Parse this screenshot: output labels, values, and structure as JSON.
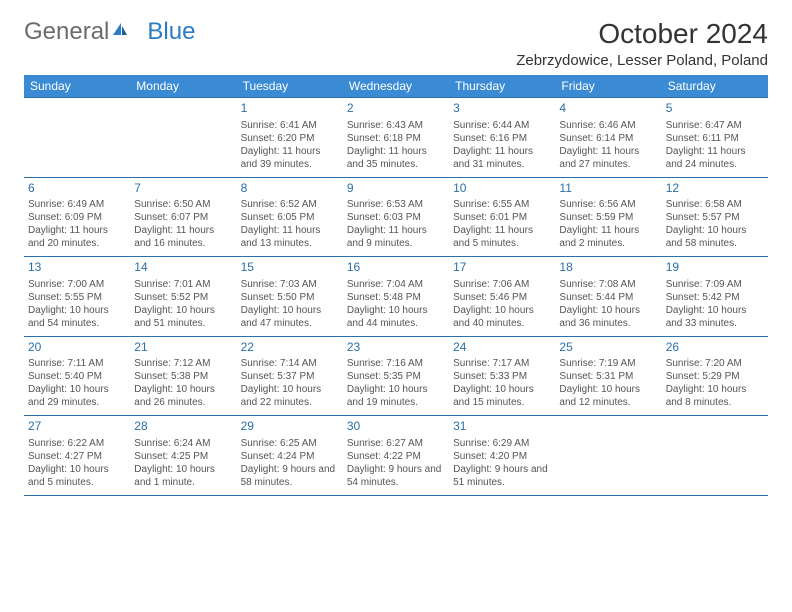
{
  "logo": {
    "general": "General",
    "blue": "Blue"
  },
  "title": "October 2024",
  "location": "Zebrzydowice, Lesser Poland, Poland",
  "colors": {
    "header_bg": "#3b8bd4",
    "header_text": "#ffffff",
    "daynum": "#2b6fa8",
    "cell_border": "#2b6fa8",
    "body_text": "#555555",
    "logo_blue": "#2b7cc4"
  },
  "day_headers": [
    "Sunday",
    "Monday",
    "Tuesday",
    "Wednesday",
    "Thursday",
    "Friday",
    "Saturday"
  ],
  "weeks": [
    [
      null,
      null,
      {
        "n": "1",
        "sr": "6:41 AM",
        "ss": "6:20 PM",
        "dl": "Daylight: 11 hours and 39 minutes."
      },
      {
        "n": "2",
        "sr": "6:43 AM",
        "ss": "6:18 PM",
        "dl": "Daylight: 11 hours and 35 minutes."
      },
      {
        "n": "3",
        "sr": "6:44 AM",
        "ss": "6:16 PM",
        "dl": "Daylight: 11 hours and 31 minutes."
      },
      {
        "n": "4",
        "sr": "6:46 AM",
        "ss": "6:14 PM",
        "dl": "Daylight: 11 hours and 27 minutes."
      },
      {
        "n": "5",
        "sr": "6:47 AM",
        "ss": "6:11 PM",
        "dl": "Daylight: 11 hours and 24 minutes."
      }
    ],
    [
      {
        "n": "6",
        "sr": "6:49 AM",
        "ss": "6:09 PM",
        "dl": "Daylight: 11 hours and 20 minutes."
      },
      {
        "n": "7",
        "sr": "6:50 AM",
        "ss": "6:07 PM",
        "dl": "Daylight: 11 hours and 16 minutes."
      },
      {
        "n": "8",
        "sr": "6:52 AM",
        "ss": "6:05 PM",
        "dl": "Daylight: 11 hours and 13 minutes."
      },
      {
        "n": "9",
        "sr": "6:53 AM",
        "ss": "6:03 PM",
        "dl": "Daylight: 11 hours and 9 minutes."
      },
      {
        "n": "10",
        "sr": "6:55 AM",
        "ss": "6:01 PM",
        "dl": "Daylight: 11 hours and 5 minutes."
      },
      {
        "n": "11",
        "sr": "6:56 AM",
        "ss": "5:59 PM",
        "dl": "Daylight: 11 hours and 2 minutes."
      },
      {
        "n": "12",
        "sr": "6:58 AM",
        "ss": "5:57 PM",
        "dl": "Daylight: 10 hours and 58 minutes."
      }
    ],
    [
      {
        "n": "13",
        "sr": "7:00 AM",
        "ss": "5:55 PM",
        "dl": "Daylight: 10 hours and 54 minutes."
      },
      {
        "n": "14",
        "sr": "7:01 AM",
        "ss": "5:52 PM",
        "dl": "Daylight: 10 hours and 51 minutes."
      },
      {
        "n": "15",
        "sr": "7:03 AM",
        "ss": "5:50 PM",
        "dl": "Daylight: 10 hours and 47 minutes."
      },
      {
        "n": "16",
        "sr": "7:04 AM",
        "ss": "5:48 PM",
        "dl": "Daylight: 10 hours and 44 minutes."
      },
      {
        "n": "17",
        "sr": "7:06 AM",
        "ss": "5:46 PM",
        "dl": "Daylight: 10 hours and 40 minutes."
      },
      {
        "n": "18",
        "sr": "7:08 AM",
        "ss": "5:44 PM",
        "dl": "Daylight: 10 hours and 36 minutes."
      },
      {
        "n": "19",
        "sr": "7:09 AM",
        "ss": "5:42 PM",
        "dl": "Daylight: 10 hours and 33 minutes."
      }
    ],
    [
      {
        "n": "20",
        "sr": "7:11 AM",
        "ss": "5:40 PM",
        "dl": "Daylight: 10 hours and 29 minutes."
      },
      {
        "n": "21",
        "sr": "7:12 AM",
        "ss": "5:38 PM",
        "dl": "Daylight: 10 hours and 26 minutes."
      },
      {
        "n": "22",
        "sr": "7:14 AM",
        "ss": "5:37 PM",
        "dl": "Daylight: 10 hours and 22 minutes."
      },
      {
        "n": "23",
        "sr": "7:16 AM",
        "ss": "5:35 PM",
        "dl": "Daylight: 10 hours and 19 minutes."
      },
      {
        "n": "24",
        "sr": "7:17 AM",
        "ss": "5:33 PM",
        "dl": "Daylight: 10 hours and 15 minutes."
      },
      {
        "n": "25",
        "sr": "7:19 AM",
        "ss": "5:31 PM",
        "dl": "Daylight: 10 hours and 12 minutes."
      },
      {
        "n": "26",
        "sr": "7:20 AM",
        "ss": "5:29 PM",
        "dl": "Daylight: 10 hours and 8 minutes."
      }
    ],
    [
      {
        "n": "27",
        "sr": "6:22 AM",
        "ss": "4:27 PM",
        "dl": "Daylight: 10 hours and 5 minutes."
      },
      {
        "n": "28",
        "sr": "6:24 AM",
        "ss": "4:25 PM",
        "dl": "Daylight: 10 hours and 1 minute."
      },
      {
        "n": "29",
        "sr": "6:25 AM",
        "ss": "4:24 PM",
        "dl": "Daylight: 9 hours and 58 minutes."
      },
      {
        "n": "30",
        "sr": "6:27 AM",
        "ss": "4:22 PM",
        "dl": "Daylight: 9 hours and 54 minutes."
      },
      {
        "n": "31",
        "sr": "6:29 AM",
        "ss": "4:20 PM",
        "dl": "Daylight: 9 hours and 51 minutes."
      },
      null,
      null
    ]
  ],
  "labels": {
    "sunrise": "Sunrise:",
    "sunset": "Sunset:"
  }
}
